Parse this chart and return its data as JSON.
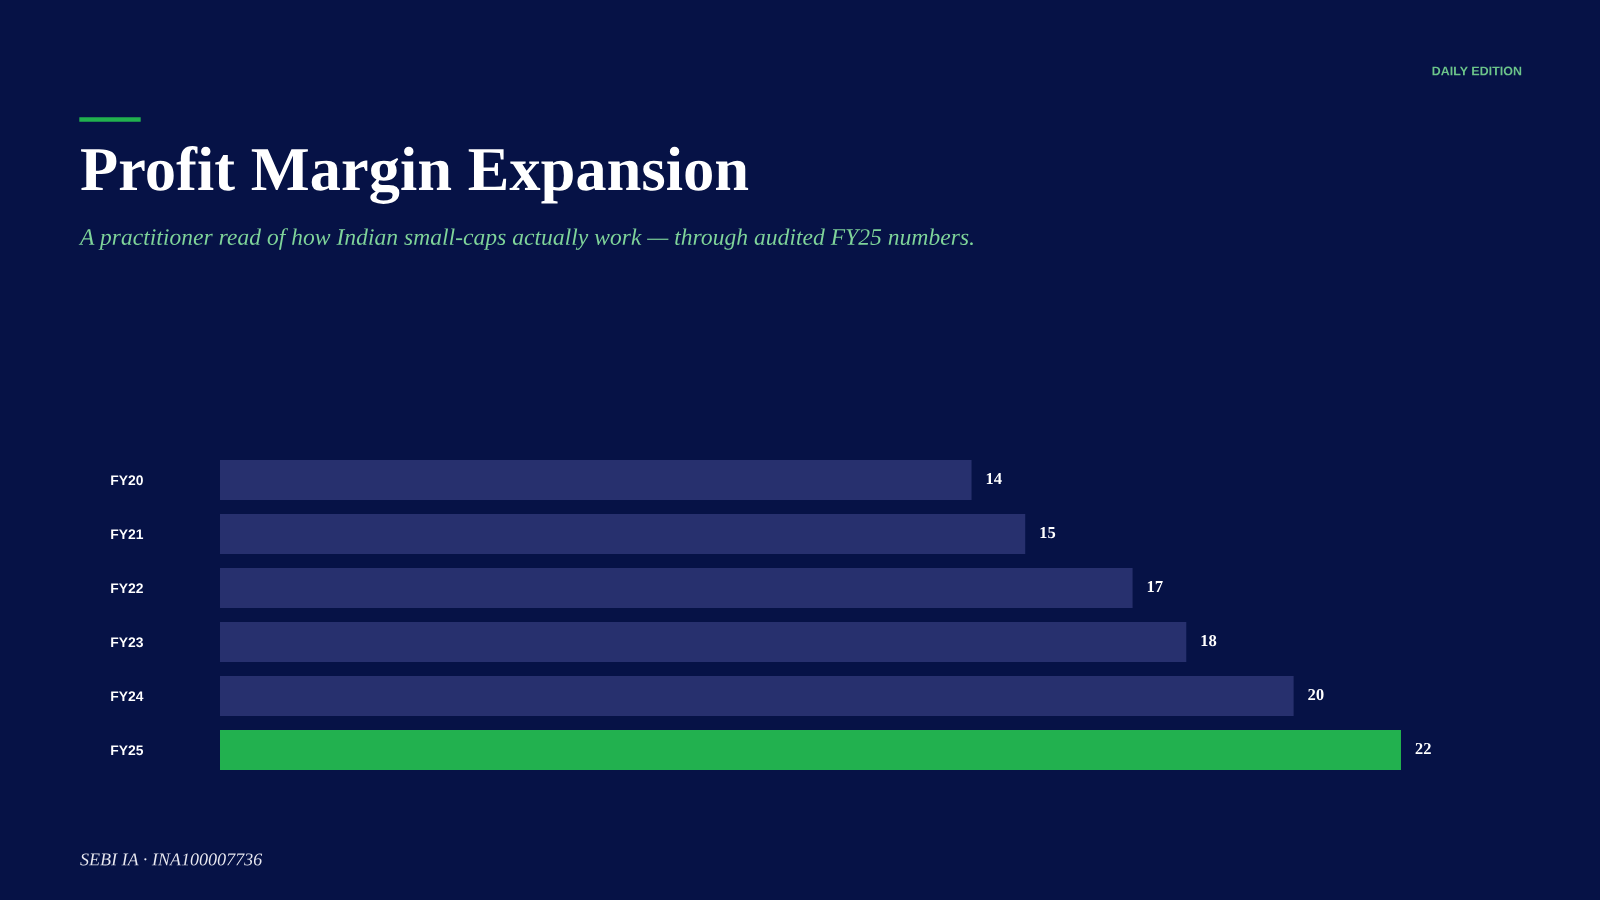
{
  "chart_data": {
    "type": "bar",
    "orientation": "horizontal",
    "title": "Profit Margin Expansion",
    "subtitle": "A practitioner read of how Indian small-caps actually work — through audited FY25 numbers.",
    "annotations": [
      "DAILY EDITION",
      "SEBI IA · INA100007736"
    ],
    "categories": [
      "FY20",
      "FY21",
      "FY22",
      "FY23",
      "FY24",
      "FY25"
    ],
    "values": [
      14,
      15,
      17,
      18,
      20,
      22
    ],
    "colors": [
      "#27306e",
      "#27306e",
      "#27306e",
      "#27306e",
      "#27306e",
      "#22b14f"
    ],
    "data_labels": true,
    "grid": false,
    "legend": false
  }
}
